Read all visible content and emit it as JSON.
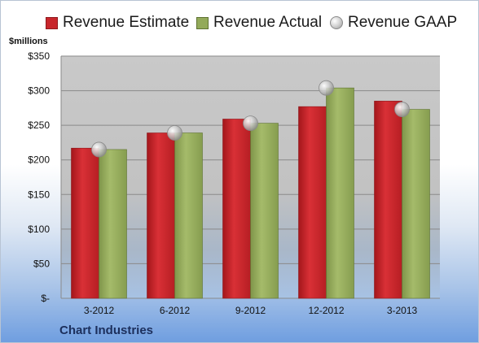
{
  "legend": {
    "estimate": "Revenue Estimate",
    "actual": "Revenue Actual",
    "gaap": "Revenue GAAP"
  },
  "unit_label": "$millions",
  "company": "Chart Industries",
  "chart_data": {
    "type": "bar",
    "categories": [
      "3-2012",
      "6-2012",
      "9-2012",
      "12-2012",
      "3-2013"
    ],
    "series": [
      {
        "name": "Revenue Estimate",
        "values": [
          217,
          239,
          259,
          277,
          285
        ],
        "color": "#c8262b"
      },
      {
        "name": "Revenue Actual",
        "values": [
          215,
          239,
          253,
          304,
          273
        ],
        "color": "#93aa5a"
      },
      {
        "name": "Revenue GAAP",
        "values": [
          215,
          239,
          253,
          304,
          273
        ],
        "color": "#b0b0b0",
        "marker": "sphere"
      }
    ],
    "ylim": [
      0,
      350
    ],
    "yticks": [
      0,
      50,
      100,
      150,
      200,
      250,
      300,
      350
    ],
    "ytick_labels": [
      "$-",
      "$50",
      "$100",
      "$150",
      "$200",
      "$250",
      "$300",
      "$350"
    ],
    "grid": true,
    "legend_position": "top"
  }
}
